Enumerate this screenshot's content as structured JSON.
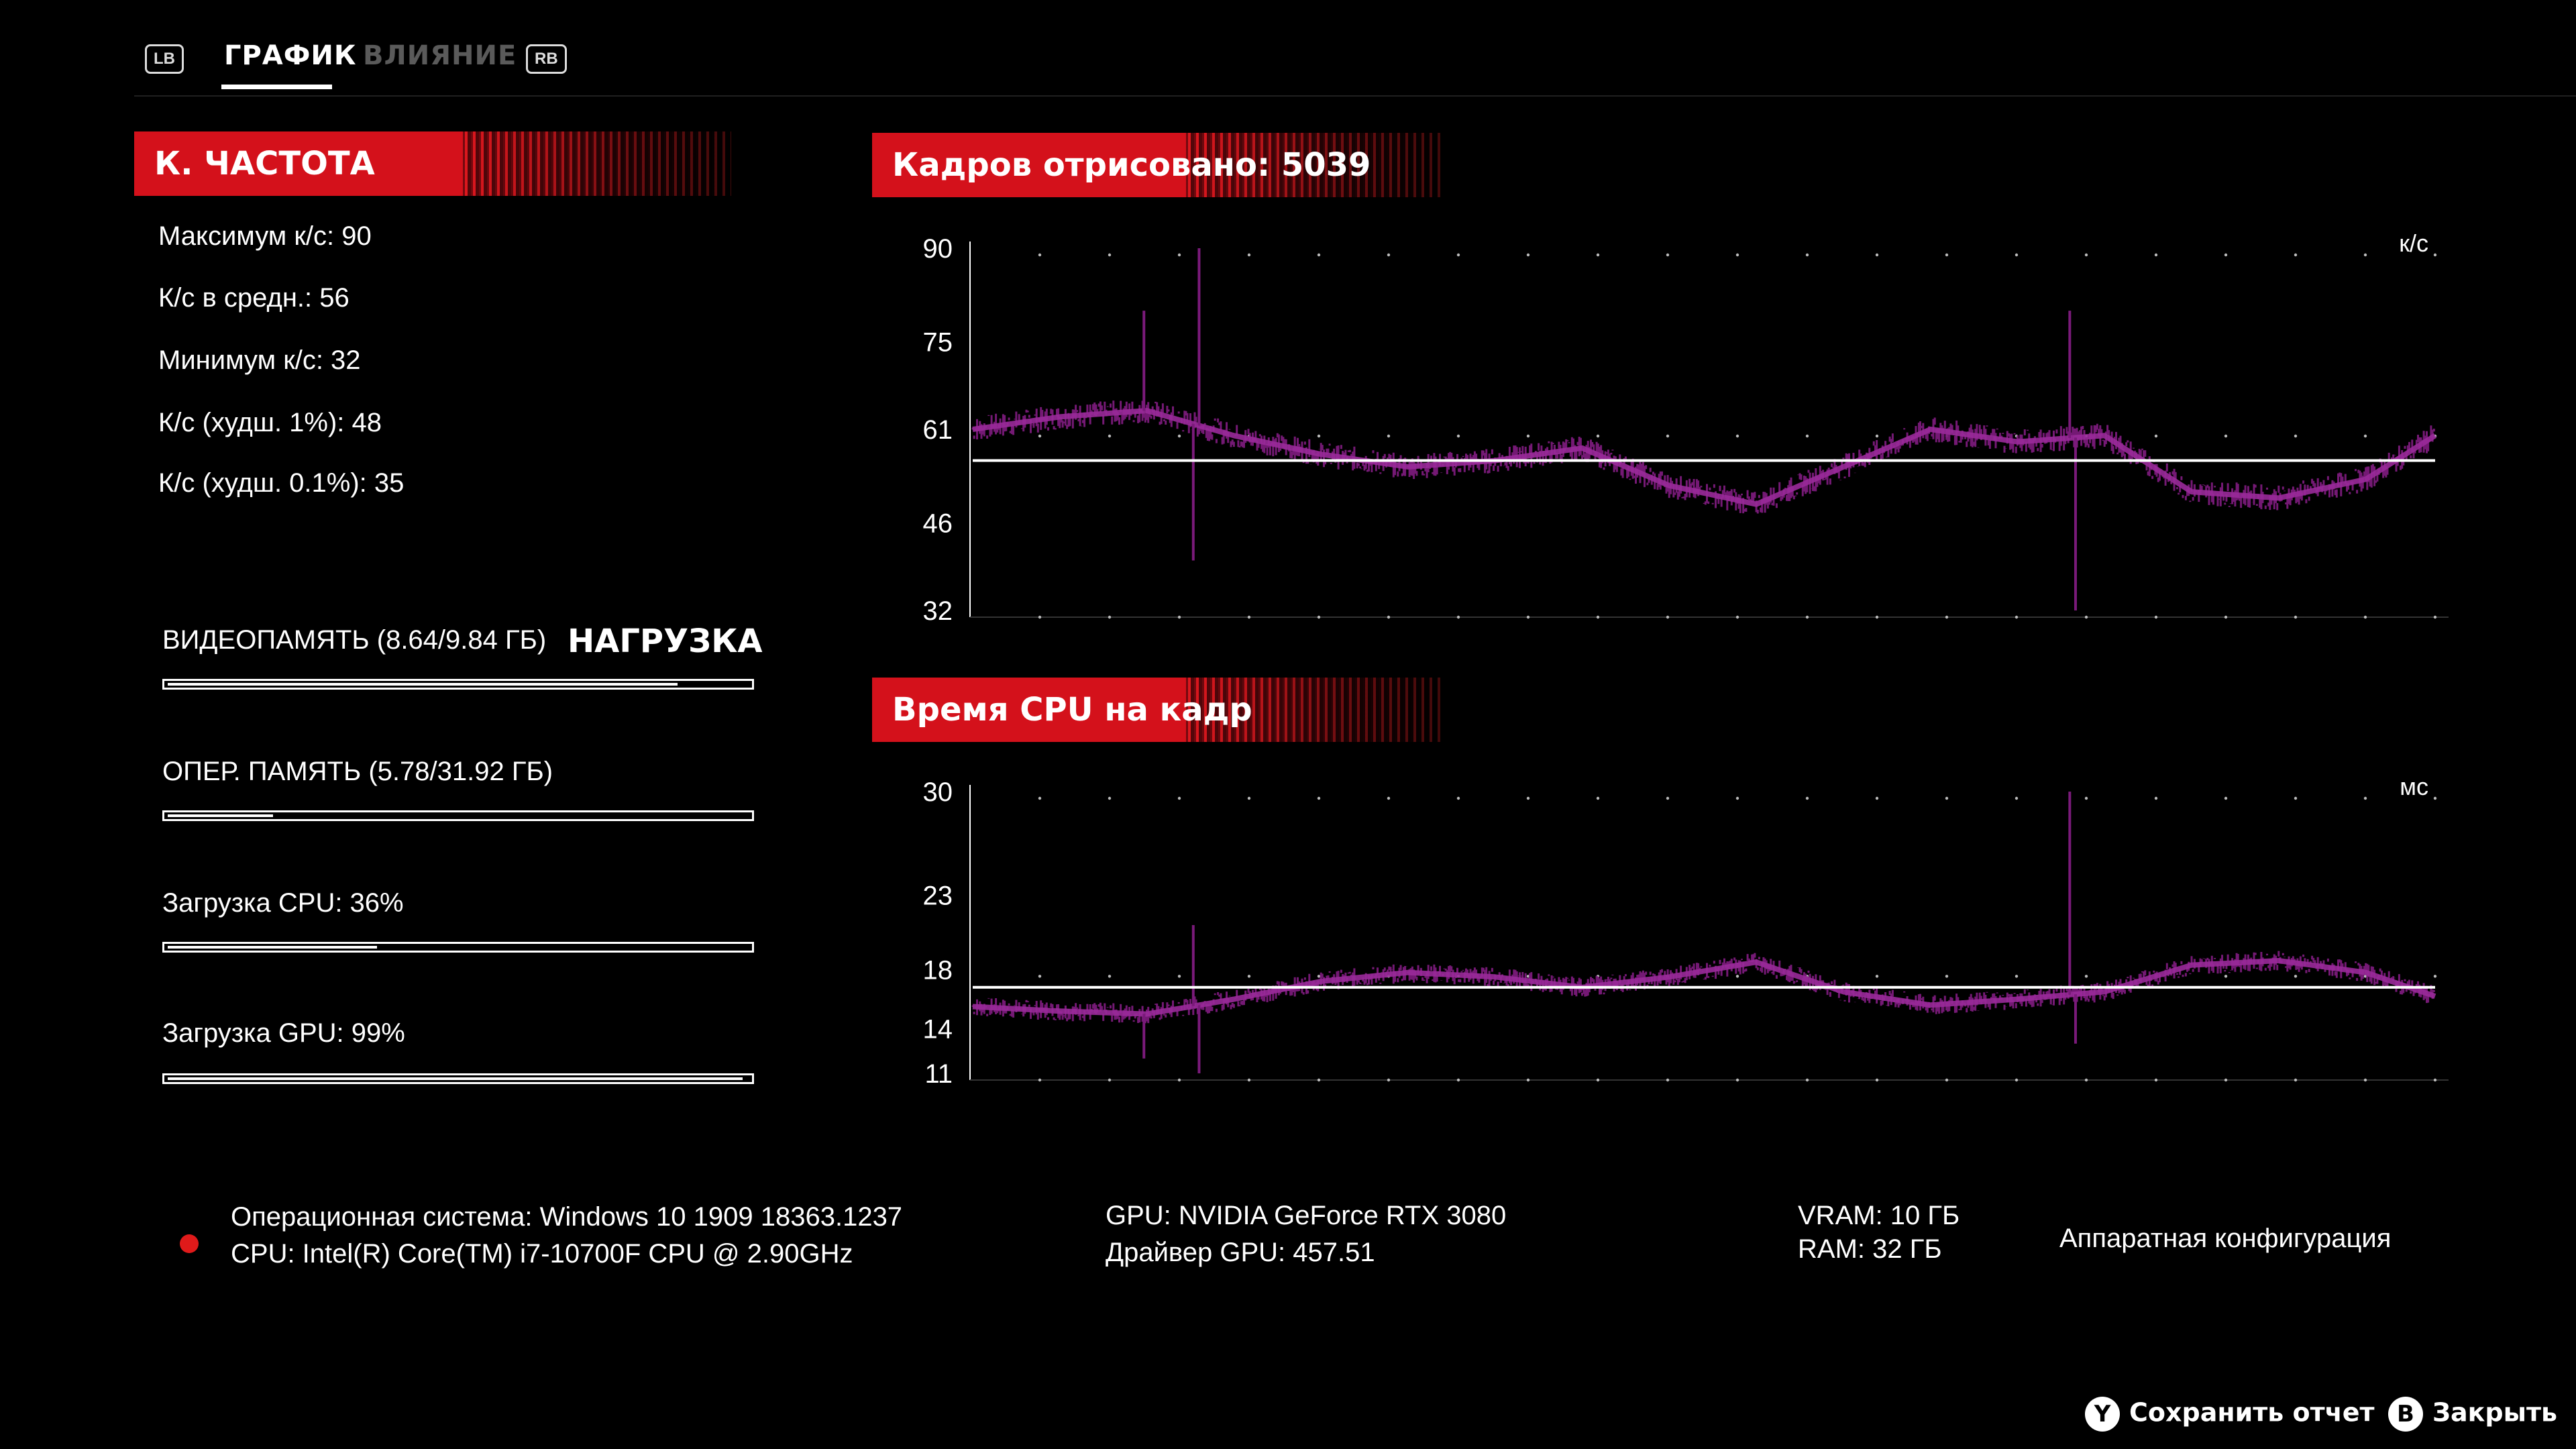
{
  "nav": {
    "lb": "LB",
    "rb": "RB",
    "tabs": [
      {
        "label": "ГРАФИК",
        "active": true
      },
      {
        "label": "ВЛИЯНИЕ",
        "active": false
      }
    ]
  },
  "framerate": {
    "title": "К. ЧАСТОТА",
    "stats": [
      "Максимум к/с: 90",
      "К/с в средн.: 56",
      "Минимум к/с: 32",
      "К/с (худш. 1%): 48",
      "К/с (худш. 0.1%): 35"
    ]
  },
  "load": {
    "title": "НАГРУЗКА",
    "items": [
      {
        "label": "ВИДЕОПАМЯТЬ (8.64/9.84 ГБ)",
        "fraction": 0.878
      },
      {
        "label": "ОПЕР. ПАМЯТЬ (5.78/31.92 ГБ)",
        "fraction": 0.181
      },
      {
        "label": "Загрузка CPU: 36%",
        "fraction": 0.36
      },
      {
        "label": "Загрузка GPU: 99%",
        "fraction": 0.99
      }
    ]
  },
  "chart_data": [
    {
      "type": "line",
      "title": "Кадров отрисовано: 5039",
      "unit": "к/с",
      "ylabel": "",
      "yticks": [
        90,
        75,
        61,
        46,
        32
      ],
      "ylim": [
        32,
        90
      ],
      "average": 56,
      "frames": 5039,
      "x": [
        0,
        300,
        600,
        900,
        1200,
        1500,
        1800,
        2100,
        2400,
        2700,
        3000,
        3300,
        3600,
        3900,
        4200,
        4500,
        4800,
        5039
      ],
      "series": [
        {
          "values": [
            61,
            63,
            64,
            60,
            57,
            55,
            56,
            58,
            52,
            49,
            55,
            61,
            59,
            60,
            51,
            50,
            53,
            60
          ]
        }
      ],
      "spikes": [
        {
          "x": 780,
          "value": 90
        },
        {
          "x": 760,
          "value": 40
        },
        {
          "x": 590,
          "value": 80
        },
        {
          "x": 3780,
          "value": 80
        },
        {
          "x": 3800,
          "value": 32
        }
      ],
      "color": "#7a1a7a",
      "avg_line_color": "#ffffff"
    },
    {
      "type": "line",
      "title": "Время CPU на кадр",
      "unit": "мс",
      "ylabel": "",
      "yticks": [
        30,
        23,
        18,
        14,
        11
      ],
      "ylim": [
        11,
        30
      ],
      "average": 16.8,
      "x": [
        0,
        300,
        600,
        900,
        1200,
        1500,
        1800,
        2100,
        2400,
        2700,
        3000,
        3300,
        3600,
        3900,
        4200,
        4500,
        4800,
        5039
      ],
      "series": [
        {
          "values": [
            15.5,
            15.2,
            15.0,
            16.0,
            17.2,
            17.8,
            17.5,
            16.8,
            17.5,
            18.5,
            16.5,
            15.6,
            16.0,
            16.5,
            18.3,
            18.6,
            17.8,
            16.2
          ]
        }
      ],
      "spikes": [
        {
          "x": 780,
          "value": 11
        },
        {
          "x": 760,
          "value": 21
        },
        {
          "x": 590,
          "value": 12
        },
        {
          "x": 3780,
          "value": 30
        },
        {
          "x": 3800,
          "value": 13
        }
      ],
      "color": "#7a1a7a",
      "avg_line_color": "#ffffff"
    }
  ],
  "footer": {
    "os": "Операционная система: Windows 10 1909 18363.1237",
    "cpu": "CPU: Intel(R) Core(TM) i7-10700F CPU @ 2.90GHz",
    "gpu": "GPU: NVIDIA GeForce RTX 3080",
    "driver": "Драйвер GPU: 457.51",
    "vram": "VRAM: 10 ГБ",
    "ram": "RAM: 32 ГБ",
    "hw_config": "Аппаратная конфигурация",
    "dot_color": "#e01a1a"
  },
  "actions": {
    "save_glyph": "Y",
    "save_label": "Сохранить отчет",
    "close_glyph": "B",
    "close_label": "Закрыть"
  }
}
